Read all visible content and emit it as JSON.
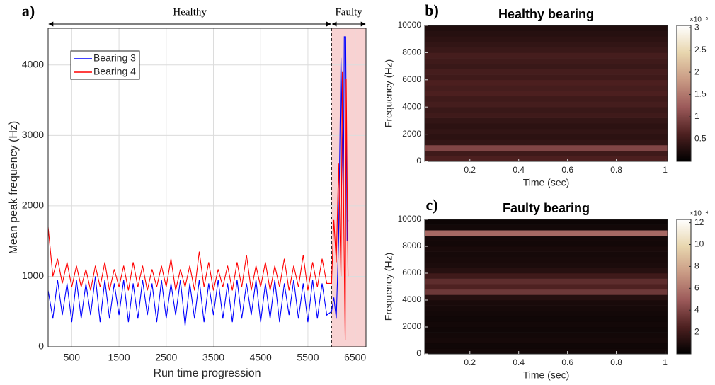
{
  "chart_data": [
    {
      "type": "line",
      "panel_label": "a)",
      "xlabel": "Run time progression",
      "ylabel": "Mean peak frequency (Hz)",
      "xlim": [
        0,
        6730
      ],
      "ylim": [
        0,
        4520
      ],
      "xticks": [
        500,
        1500,
        2500,
        3500,
        4500,
        5500,
        6500
      ],
      "yticks": [
        0,
        1000,
        2000,
        3000,
        4000
      ],
      "grid": true,
      "legend": "upper-left",
      "regions": [
        {
          "label": "Healthy",
          "x": [
            0,
            6000
          ]
        },
        {
          "label": "Faulty",
          "x": [
            6000,
            6730
          ],
          "color": "#f8d2d2"
        }
      ],
      "series": [
        {
          "name": "Bearing 3",
          "color": "#0000ff",
          "x": [
            0,
            100,
            200,
            300,
            400,
            500,
            600,
            700,
            800,
            900,
            1000,
            1100,
            1200,
            1300,
            1400,
            1500,
            1600,
            1700,
            1800,
            1900,
            2000,
            2100,
            2200,
            2300,
            2400,
            2500,
            2600,
            2700,
            2800,
            2900,
            3000,
            3100,
            3200,
            3300,
            3400,
            3500,
            3600,
            3700,
            3800,
            3900,
            4000,
            4100,
            4200,
            4300,
            4400,
            4500,
            4600,
            4700,
            4800,
            4900,
            5000,
            5100,
            5200,
            5300,
            5400,
            5500,
            5600,
            5700,
            5800,
            5900,
            6000,
            6050,
            6100,
            6150,
            6200,
            6250,
            6270,
            6300,
            6330,
            6350
          ],
          "values": [
            800,
            400,
            950,
            450,
            900,
            350,
            950,
            400,
            900,
            450,
            1000,
            350,
            950,
            400,
            900,
            450,
            950,
            350,
            900,
            400,
            950,
            450,
            900,
            350,
            950,
            400,
            900,
            450,
            950,
            300,
            900,
            400,
            950,
            350,
            900,
            450,
            950,
            400,
            900,
            350,
            950,
            400,
            900,
            450,
            950,
            350,
            900,
            400,
            950,
            350,
            900,
            450,
            950,
            400,
            900,
            350,
            950,
            400,
            900,
            450,
            500,
            700,
            400,
            1500,
            4100,
            2000,
            4400,
            4400,
            1500,
            1800
          ]
        },
        {
          "name": "Bearing 4",
          "color": "#ff0000",
          "x": [
            0,
            100,
            200,
            300,
            400,
            500,
            600,
            700,
            800,
            900,
            1000,
            1100,
            1200,
            1300,
            1400,
            1500,
            1600,
            1700,
            1800,
            1900,
            2000,
            2100,
            2200,
            2300,
            2400,
            2500,
            2600,
            2700,
            2800,
            2900,
            3000,
            3100,
            3200,
            3300,
            3400,
            3500,
            3600,
            3700,
            3800,
            3900,
            4000,
            4100,
            4200,
            4300,
            4400,
            4500,
            4600,
            4700,
            4800,
            4900,
            5000,
            5100,
            5200,
            5300,
            5400,
            5500,
            5600,
            5700,
            5800,
            5900,
            6000,
            6050,
            6100,
            6150,
            6200,
            6230,
            6260,
            6290,
            6310,
            6350
          ],
          "values": [
            1700,
            1000,
            1250,
            900,
            1200,
            850,
            1150,
            850,
            1100,
            800,
            1150,
            850,
            1200,
            800,
            1100,
            850,
            1150,
            800,
            1200,
            850,
            1150,
            800,
            1100,
            850,
            1150,
            850,
            1250,
            800,
            1100,
            850,
            1150,
            800,
            1350,
            850,
            1200,
            800,
            1100,
            850,
            1150,
            800,
            1200,
            850,
            1300,
            800,
            1150,
            850,
            1200,
            800,
            1150,
            850,
            1250,
            800,
            1150,
            850,
            1300,
            800,
            1200,
            850,
            1250,
            900,
            900,
            1800,
            1200,
            2600,
            1000,
            3900,
            1800,
            100,
            3800,
            1000
          ]
        }
      ]
    },
    {
      "type": "heatmap",
      "panel_label": "b)",
      "title": "Healthy bearing",
      "xlabel": "Time (sec)",
      "ylabel": "Frequency (Hz)",
      "xlim": [
        0.015,
        1.01
      ],
      "ylim": [
        0,
        10000
      ],
      "xticks": [
        0.2,
        0.4,
        0.6,
        0.8,
        1
      ],
      "yticks": [
        0,
        2000,
        4000,
        6000,
        8000,
        10000
      ],
      "frequency_bins": [
        0,
        400,
        800,
        1200,
        1600,
        2000,
        2400,
        2800,
        3200,
        3600,
        4000,
        4400,
        4800,
        5200,
        5600,
        6000,
        6400,
        6800,
        7200,
        7600,
        8000,
        8400,
        8800,
        9200,
        9600,
        10000
      ],
      "values": [
        0.6,
        0.5,
        1.0,
        0.4,
        0.35,
        0.4,
        0.35,
        0.4,
        0.5,
        0.45,
        0.55,
        0.5,
        0.6,
        0.55,
        0.6,
        0.5,
        0.55,
        0.45,
        0.5,
        0.55,
        0.45,
        0.4,
        0.35,
        0.3,
        0.25
      ],
      "clim": [
        0,
        3.05
      ],
      "colorbar_ticks": [
        0.5,
        1,
        1.5,
        2,
        2.5,
        3
      ],
      "colorbar_exponent": "×10⁻⁵",
      "colormap": [
        "#000000",
        "#4d2020",
        "#9c5a5a",
        "#c99a84",
        "#e8d6ae",
        "#ffffff"
      ]
    },
    {
      "type": "heatmap",
      "panel_label": "c)",
      "title": "Faulty bearing",
      "xlabel": "Time (sec)",
      "ylabel": "Frequency (Hz)",
      "xlim": [
        0.015,
        1.01
      ],
      "ylim": [
        0,
        10000
      ],
      "xticks": [
        0.2,
        0.4,
        0.6,
        0.8,
        1
      ],
      "yticks": [
        0,
        2000,
        4000,
        6000,
        8000,
        10000
      ],
      "frequency_bins": [
        0,
        400,
        800,
        1200,
        1600,
        2000,
        2400,
        2800,
        3200,
        3600,
        4000,
        4400,
        4800,
        5200,
        5600,
        6000,
        6400,
        6800,
        7200,
        7600,
        8000,
        8400,
        8800,
        9200,
        9600,
        10000
      ],
      "values": [
        0.6,
        0.5,
        0.7,
        0.6,
        0.5,
        0.6,
        0.5,
        0.6,
        0.7,
        0.8,
        1.2,
        3.5,
        2.5,
        3.0,
        2.0,
        1.2,
        0.9,
        0.8,
        0.7,
        0.8,
        0.6,
        0.7,
        5.5,
        0.6,
        0.4
      ],
      "clim": [
        0,
        12.3
      ],
      "colorbar_ticks": [
        2,
        4,
        6,
        8,
        10,
        12
      ],
      "colorbar_exponent": "×10⁻⁴",
      "colormap": [
        "#000000",
        "#4d2020",
        "#9c5a5a",
        "#c99a84",
        "#e8d6ae",
        "#ffffff"
      ]
    }
  ]
}
